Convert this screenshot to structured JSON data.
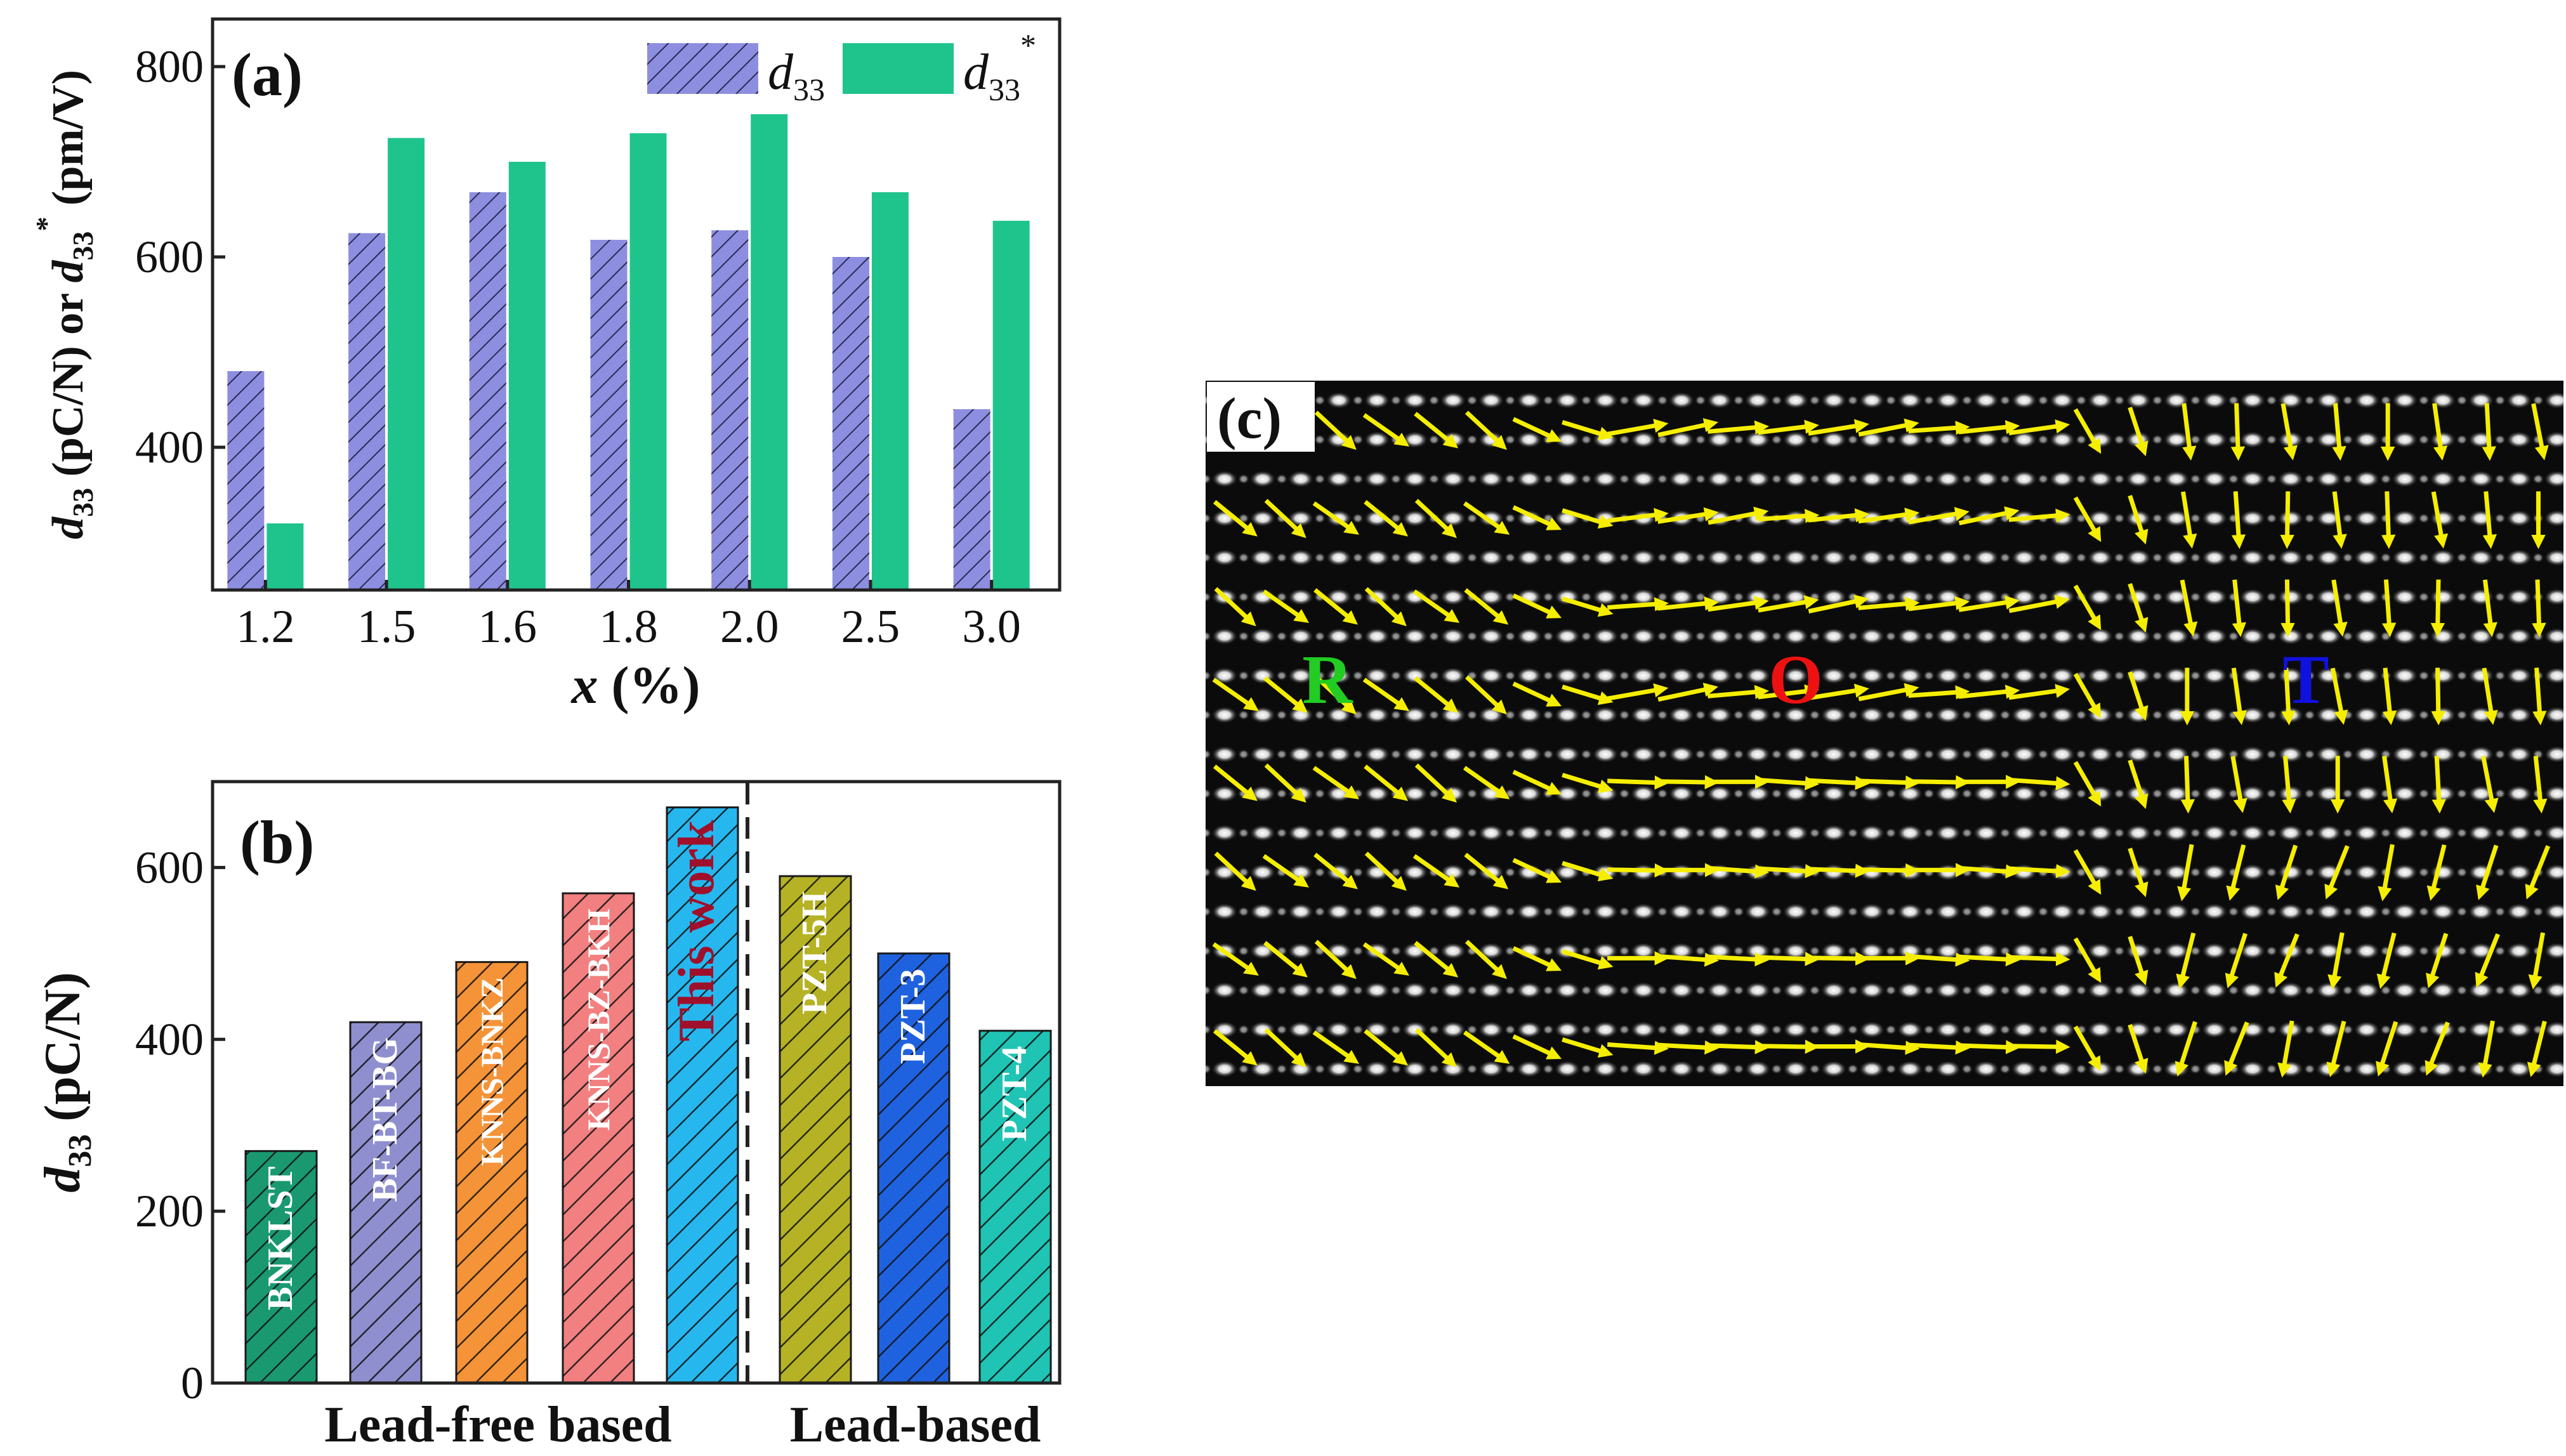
{
  "chart_data": [
    {
      "id": "a",
      "type": "bar",
      "panel_label": "(a)",
      "xlabel_main": "x",
      "xlabel_rest": " (%)",
      "ylabel": {
        "d": "d",
        "sub": "33",
        "mid": " (pC/N) or ",
        "d2": "d",
        "sub2": "33",
        "sup2": "*",
        "end": " (pm/V)"
      },
      "categories": [
        "1.2",
        "1.5",
        "1.6",
        "1.8",
        "2.0",
        "2.5",
        "3.0"
      ],
      "yticks": [
        400,
        600,
        800
      ],
      "ylim": [
        250,
        850
      ],
      "series": [
        {
          "name": "d33",
          "legend_d": "d",
          "legend_sub": "33",
          "legend_sup": "",
          "color": "#8e8ee0",
          "hatched": true,
          "values": [
            480,
            625,
            668,
            618,
            628,
            600,
            440
          ]
        },
        {
          "name": "d33*",
          "legend_d": "d",
          "legend_sub": "33",
          "legend_sup": "*",
          "color": "#1fc48d",
          "hatched": false,
          "values": [
            320,
            725,
            700,
            730,
            750,
            668,
            638
          ]
        }
      ]
    },
    {
      "id": "b",
      "type": "bar",
      "panel_label": "(b)",
      "ylabel": {
        "d": "d",
        "sub": "33",
        "end": " (pC/N)"
      },
      "yticks": [
        0,
        200,
        400,
        600
      ],
      "ylim": [
        0,
        700
      ],
      "bars": [
        {
          "label": "BNKLST",
          "value": 270,
          "color": "#1a9970",
          "text_color": "#ffffff"
        },
        {
          "label": "BF-BT-BG",
          "value": 420,
          "color": "#8f8fd0",
          "text_color": "#ffffff"
        },
        {
          "label": "KNNS-BNKZ",
          "value": 490,
          "color": "#f59338",
          "text_color": "#ffffff"
        },
        {
          "label": "KNNS-BZ-BKH",
          "value": 570,
          "color": "#f28080",
          "text_color": "#ffffff"
        },
        {
          "label": "This work",
          "value": 670,
          "color": "#27b7ef",
          "text_color": "#a0102a"
        },
        {
          "label": "PZT-5H",
          "value": 590,
          "color": "#b5b325",
          "text_color": "#ffffff"
        },
        {
          "label": "PZT-3",
          "value": 500,
          "color": "#1f62e0",
          "text_color": "#ffffff"
        },
        {
          "label": "PZT-4",
          "value": 410,
          "color": "#1fc4b4",
          "text_color": "#ffffff"
        }
      ],
      "groups": [
        {
          "label": "Lead-free based",
          "from": 0,
          "to": 4
        },
        {
          "label": "Lead-based",
          "from": 5,
          "to": 7
        }
      ]
    }
  ],
  "panel_c": {
    "label": "(c)",
    "regions": [
      {
        "label": "R",
        "color": "#22cc22"
      },
      {
        "label": "O",
        "color": "#ee1111"
      },
      {
        "label": "T",
        "color": "#1111dd"
      }
    ],
    "arrow_color": "#f5ee00"
  }
}
